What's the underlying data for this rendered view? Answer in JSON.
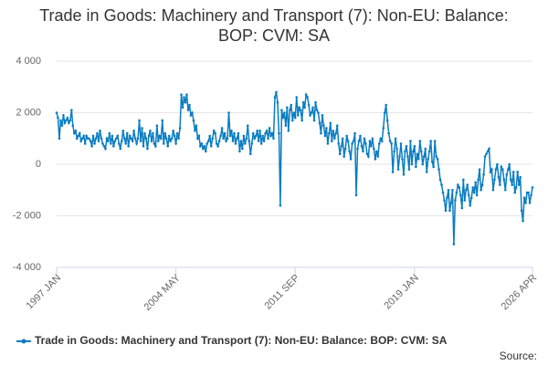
{
  "chart_data": {
    "type": "line",
    "title": "Trade in Goods: Machinery and Transport (7): Non-EU: Balance: BOP: CVM: SA",
    "x": [
      "1997-01",
      "1997-02",
      "1997-03",
      "1997-04",
      "1997-05",
      "1997-06",
      "1997-07",
      "1997-08",
      "1997-09",
      "1997-10",
      "1997-11",
      "1997-12",
      "1998-01",
      "1998-02",
      "1998-03",
      "1998-04",
      "1998-05",
      "1998-06",
      "1998-07",
      "1998-08",
      "1998-09",
      "1998-10",
      "1998-11",
      "1998-12",
      "1999-01",
      "1999-02",
      "1999-03",
      "1999-04",
      "1999-05",
      "1999-06",
      "1999-07",
      "1999-08",
      "1999-09",
      "1999-10",
      "1999-11",
      "1999-12",
      "2000-01",
      "2000-02",
      "2000-03",
      "2000-04",
      "2000-05",
      "2000-06",
      "2000-07",
      "2000-08",
      "2000-09",
      "2000-10",
      "2000-11",
      "2000-12",
      "2001-01",
      "2001-02",
      "2001-03",
      "2001-04",
      "2001-05",
      "2001-06",
      "2001-07",
      "2001-08",
      "2001-09",
      "2001-10",
      "2001-11",
      "2001-12",
      "2002-01",
      "2002-02",
      "2002-03",
      "2002-04",
      "2002-05",
      "2002-06",
      "2002-07",
      "2002-08",
      "2002-09",
      "2002-10",
      "2002-11",
      "2002-12",
      "2003-01",
      "2003-02",
      "2003-03",
      "2003-04",
      "2003-05",
      "2003-06",
      "2003-07",
      "2003-08",
      "2003-09",
      "2003-10",
      "2003-11",
      "2003-12",
      "2004-01",
      "2004-02",
      "2004-03",
      "2004-04",
      "2004-05",
      "2004-06",
      "2004-07",
      "2004-08",
      "2004-09",
      "2004-10",
      "2004-11",
      "2004-12",
      "2005-01",
      "2005-02",
      "2005-03",
      "2005-04",
      "2005-05",
      "2005-06",
      "2005-07",
      "2005-08",
      "2005-09",
      "2005-10",
      "2005-11",
      "2005-12",
      "2006-01",
      "2006-02",
      "2006-03",
      "2006-04",
      "2006-05",
      "2006-06",
      "2006-07",
      "2006-08",
      "2006-09",
      "2006-10",
      "2006-11",
      "2006-12",
      "2007-01",
      "2007-02",
      "2007-03",
      "2007-04",
      "2007-05",
      "2007-06",
      "2007-07",
      "2007-08",
      "2007-09",
      "2007-10",
      "2007-11",
      "2007-12",
      "2008-01",
      "2008-02",
      "2008-03",
      "2008-04",
      "2008-05",
      "2008-06",
      "2008-07",
      "2008-08",
      "2008-09",
      "2008-10",
      "2008-11",
      "2008-12",
      "2009-01",
      "2009-02",
      "2009-03",
      "2009-04",
      "2009-05",
      "2009-06",
      "2009-07",
      "2009-08",
      "2009-09",
      "2009-10",
      "2009-11",
      "2009-12",
      "2010-01",
      "2010-02",
      "2010-03",
      "2010-04",
      "2010-05",
      "2010-06",
      "2010-07",
      "2010-08",
      "2010-09",
      "2010-10",
      "2010-11",
      "2010-12",
      "2011-01",
      "2011-02",
      "2011-03",
      "2011-04",
      "2011-05",
      "2011-06",
      "2011-07",
      "2011-08",
      "2011-09",
      "2011-10",
      "2011-11",
      "2011-12",
      "2012-01",
      "2012-02",
      "2012-03",
      "2012-04",
      "2012-05",
      "2012-06",
      "2012-07",
      "2012-08",
      "2012-09",
      "2012-10",
      "2012-11",
      "2012-12",
      "2013-01",
      "2013-02",
      "2013-03",
      "2013-04",
      "2013-05",
      "2013-06",
      "2013-07",
      "2013-08",
      "2013-09",
      "2013-10",
      "2013-11",
      "2013-12",
      "2014-01",
      "2014-02",
      "2014-03",
      "2014-04",
      "2014-05",
      "2014-06",
      "2014-07",
      "2014-08",
      "2014-09",
      "2014-10",
      "2014-11",
      "2014-12",
      "2015-01",
      "2015-02",
      "2015-03",
      "2015-04",
      "2015-05",
      "2015-06",
      "2015-07",
      "2015-08",
      "2015-09",
      "2015-10",
      "2015-11",
      "2015-12",
      "2016-01",
      "2016-02",
      "2016-03",
      "2016-04",
      "2016-05",
      "2016-06",
      "2016-07",
      "2016-08",
      "2016-09",
      "2016-10",
      "2016-11",
      "2016-12",
      "2017-01",
      "2017-02",
      "2017-03",
      "2017-04",
      "2017-05",
      "2017-06",
      "2017-07",
      "2017-08",
      "2017-09",
      "2017-10",
      "2017-11",
      "2017-12",
      "2018-01",
      "2018-02",
      "2018-03",
      "2018-04",
      "2018-05",
      "2018-06",
      "2018-07",
      "2018-08",
      "2018-09",
      "2018-10",
      "2018-11",
      "2018-12",
      "2019-01",
      "2019-02",
      "2019-03",
      "2019-04",
      "2019-05",
      "2019-06",
      "2019-07",
      "2019-08",
      "2019-09",
      "2019-10",
      "2019-11",
      "2019-12",
      "2020-01",
      "2020-02",
      "2020-03",
      "2020-04",
      "2020-05",
      "2020-06",
      "2020-07",
      "2020-08",
      "2020-09",
      "2020-10",
      "2020-11",
      "2020-12",
      "2021-01",
      "2021-02",
      "2021-03",
      "2021-04",
      "2021-05",
      "2021-06",
      "2021-07",
      "2021-08",
      "2021-09",
      "2021-10",
      "2021-11",
      "2021-12",
      "2022-01",
      "2022-02",
      "2022-03",
      "2022-04",
      "2022-05",
      "2022-06",
      "2022-07",
      "2022-08",
      "2022-09",
      "2022-10",
      "2022-11",
      "2022-12",
      "2023-01",
      "2023-02",
      "2023-03",
      "2023-04",
      "2023-05",
      "2023-06",
      "2023-07",
      "2023-08",
      "2023-09",
      "2023-10",
      "2023-11",
      "2023-12",
      "2024-01",
      "2024-02",
      "2024-03",
      "2024-04",
      "2024-05",
      "2024-06",
      "2024-07",
      "2024-08",
      "2024-09",
      "2024-10",
      "2024-11",
      "2024-12",
      "2025-01",
      "2025-02",
      "2025-03",
      "2025-04",
      "2025-05",
      "2025-06",
      "2025-07",
      "2025-08",
      "2025-09",
      "2025-10",
      "2025-11",
      "2025-12",
      "2026-01",
      "2026-02",
      "2026-03",
      "2026-04"
    ],
    "series": [
      {
        "name": "Trade in Goods: Machinery and Transport (7): Non-EU: Balance: BOP: CVM: SA",
        "color": "#0a7cc1",
        "values": [
          2000,
          1800,
          1000,
          1700,
          1500,
          1900,
          1600,
          1700,
          1800,
          1600,
          1700,
          2100,
          1500,
          1200,
          1300,
          1000,
          1100,
          1200,
          900,
          1000,
          1100,
          800,
          1100,
          1000,
          1000,
          900,
          700,
          1100,
          800,
          1000,
          1200,
          900,
          1300,
          1000,
          800,
          700,
          600,
          1000,
          900,
          1200,
          800,
          1100,
          700,
          900,
          1000,
          1100,
          800,
          600,
          900,
          1300,
          1000,
          800,
          1200,
          700,
          1100,
          1000,
          900,
          1300,
          1000,
          800,
          1000,
          1700,
          900,
          1400,
          700,
          1200,
          1000,
          600,
          1100,
          1300,
          900,
          1200,
          800,
          700,
          1500,
          900,
          1100,
          1000,
          1700,
          800,
          1200,
          1000,
          700,
          1100,
          900,
          1000,
          1300,
          1100,
          800,
          1200,
          1000,
          1400,
          2700,
          2200,
          2600,
          2400,
          2700,
          2100,
          2300,
          1900,
          2000,
          1700,
          1300,
          1500,
          1000,
          1100,
          700,
          800,
          600,
          700,
          500,
          800,
          900,
          1100,
          700,
          1000,
          1300,
          1200,
          800,
          700,
          900,
          1100,
          1400,
          1000,
          1200,
          900,
          1000,
          2000,
          1100,
          1300,
          900,
          1200,
          800,
          1000,
          1200,
          500,
          900,
          600,
          1100,
          800,
          1000,
          1500,
          900,
          400,
          800,
          1200,
          1000,
          1100,
          1300,
          900,
          1300,
          800,
          1100,
          900,
          1200,
          1300,
          1000,
          1400,
          1100,
          1200,
          1000,
          2600,
          2800,
          2400,
          1200,
          -1600,
          2100,
          1800,
          2000,
          1500,
          2200,
          1300,
          2100,
          2300,
          1700,
          2000,
          1800,
          2600,
          1900,
          2200,
          2100,
          1700,
          2400,
          2200,
          2700,
          2600,
          2300,
          1900,
          2000,
          2200,
          1700,
          2400,
          2100,
          2000,
          1600,
          1200,
          1900,
          1500,
          1100,
          1400,
          800,
          1200,
          1600,
          900,
          1300,
          1000,
          1200,
          1500,
          800,
          400,
          700,
          1000,
          300,
          600,
          1100,
          900,
          500,
          200,
          800,
          900,
          1200,
          -1200,
          600,
          900,
          1100,
          700,
          500,
          1000,
          800,
          400,
          300,
          900,
          700,
          1000,
          600,
          200,
          500,
          300,
          800,
          1000,
          900,
          1400,
          2000,
          2300,
          1700,
          1200,
          900,
          800,
          -300,
          500,
          1000,
          600,
          -200,
          300,
          800,
          200,
          -400,
          500,
          700,
          300,
          -200,
          900,
          0,
          500,
          700,
          -100,
          400,
          200,
          900,
          500,
          0,
          300,
          600,
          -300,
          200,
          500,
          900,
          100,
          -100,
          900,
          300,
          200,
          -200,
          -600,
          -800,
          -1100,
          -1400,
          -1800,
          -1300,
          -1000,
          -1800,
          -1500,
          -1000,
          -3100,
          -1400,
          -1100,
          -800,
          -900,
          -1200,
          -1700,
          -600,
          -1400,
          -1000,
          -800,
          -1200,
          -1600,
          -1300,
          -900,
          -1100,
          -700,
          -1200,
          -600,
          -200,
          -1000,
          -800,
          -400,
          300,
          400,
          500,
          600,
          -300,
          -200,
          -1000,
          -600,
          -200,
          0,
          -500,
          -800,
          -100,
          -200,
          -600,
          -1000,
          -400,
          -200,
          0,
          -600,
          -800,
          -300,
          -1100,
          -900,
          -300,
          -800,
          -500,
          -1800,
          -2200,
          -1300,
          -1500,
          -1100,
          -1100,
          -1500,
          -1200,
          -900
        ]
      }
    ],
    "xlim": [
      "1997-01",
      "2026-04"
    ],
    "xticks": [
      {
        "value": "1997-01",
        "label": "1997 JAN"
      },
      {
        "value": "2004-05",
        "label": "2004 MAY"
      },
      {
        "value": "2011-09",
        "label": "2011 SEP"
      },
      {
        "value": "2019-01",
        "label": "2019 JAN"
      },
      {
        "value": "2026-04",
        "label": "2026 APR"
      }
    ],
    "ylim": [
      -4000,
      4000
    ],
    "yticks": [
      {
        "value": -4000,
        "label": "-4 000"
      },
      {
        "value": -2000,
        "label": "-2 000"
      },
      0,
      {
        "value": 2000,
        "label": "2 000"
      },
      {
        "value": 4000,
        "label": "4 000"
      }
    ],
    "grid": true,
    "legend": "bottom",
    "source": "Source:"
  }
}
